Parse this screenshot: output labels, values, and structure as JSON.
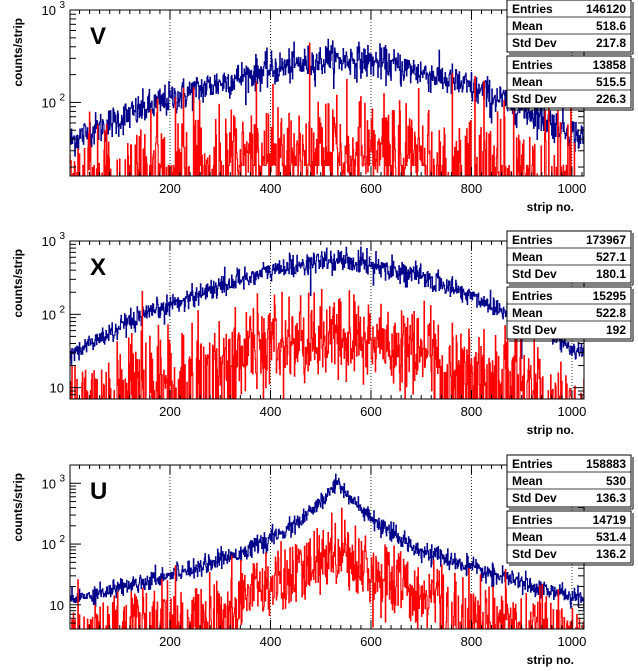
{
  "chart_data": [
    {
      "type": "line",
      "panel_label": "V",
      "xlabel": "strip no.",
      "ylabel": "counts/strip",
      "xlim": [
        1,
        1024
      ],
      "ylim": [
        16,
        1000
      ],
      "yscale": "log",
      "x_ticks": [
        200,
        400,
        600,
        800,
        1000
      ],
      "y_ticks": [
        {
          "value": 100,
          "label": "10",
          "exp": "2"
        },
        {
          "value": 1000,
          "label": "10",
          "exp": "3"
        }
      ],
      "grid": "x-dotted",
      "series": [
        {
          "color": "#00008b",
          "entries": "146120",
          "mean": "518.6",
          "std_dev": "217.8",
          "shape": {
            "peak_x": 550,
            "peak_y": 290,
            "left_y": 38,
            "right_y": 40,
            "noise": 0.18
          },
          "spikes": [
            {
              "x": 515,
              "y": 480
            },
            {
              "x": 660,
              "y": 150
            },
            {
              "x": 760,
              "y": 125
            },
            {
              "x": 840,
              "y": 60
            }
          ]
        },
        {
          "color": "#ff0000",
          "entries": "13858",
          "mean": "515.5",
          "std_dev": "226.3",
          "shape": {
            "peak_x": 520,
            "peak_y": 26,
            "left_y": 16,
            "right_y": 16,
            "noise": 0.35,
            "floor": 16
          }
        }
      ],
      "stats_labels": {
        "entries": "Entries",
        "mean": "Mean",
        "std_dev": "Std Dev"
      }
    },
    {
      "type": "line",
      "panel_label": "X",
      "xlabel": "strip no.",
      "ylabel": "counts/strip",
      "xlim": [
        1,
        1024
      ],
      "ylim": [
        7,
        1000
      ],
      "yscale": "log",
      "x_ticks": [
        200,
        400,
        600,
        800,
        1000
      ],
      "y_ticks": [
        {
          "value": 10,
          "label": "10",
          "exp": ""
        },
        {
          "value": 100,
          "label": "10",
          "exp": "2"
        },
        {
          "value": 1000,
          "label": "10",
          "exp": "3"
        }
      ],
      "grid": "x-dotted",
      "series": [
        {
          "color": "#00008b",
          "entries": "173967",
          "mean": "527.1",
          "std_dev": "180.1",
          "shape": {
            "peak_x": 535,
            "peak_y": 540,
            "left_y": 28,
            "right_y": 28,
            "noise": 0.15
          },
          "spikes": [
            {
              "x": 480,
              "y": 180
            },
            {
              "x": 605,
              "y": 250
            },
            {
              "x": 900,
              "y": 25
            }
          ]
        },
        {
          "color": "#ff0000",
          "entries": "15295",
          "mean": "522.8",
          "std_dev": "192",
          "shape": {
            "peak_x": 535,
            "peak_y": 45,
            "left_y": 7,
            "right_y": 7,
            "noise": 0.3,
            "floor": 7
          }
        }
      ],
      "stats_labels": {
        "entries": "Entries",
        "mean": "Mean",
        "std_dev": "Std Dev"
      }
    },
    {
      "type": "line",
      "panel_label": "U",
      "xlabel": "strip no.",
      "ylabel": "counts/strip",
      "xlim": [
        1,
        1024
      ],
      "ylim": [
        4,
        2000
      ],
      "yscale": "log",
      "x_ticks": [
        200,
        400,
        600,
        800,
        1000
      ],
      "y_ticks": [
        {
          "value": 10,
          "label": "10",
          "exp": ""
        },
        {
          "value": 100,
          "label": "10",
          "exp": "2"
        },
        {
          "value": 1000,
          "label": "10",
          "exp": "3"
        }
      ],
      "grid": "x-dotted",
      "series": [
        {
          "color": "#00008b",
          "entries": "158883",
          "mean": "530",
          "std_dev": "136.3",
          "shape": {
            "peak_x": 535,
            "peak_y": 1100,
            "left_y": 12,
            "right_y": 12,
            "noise": 0.15,
            "sharp": true
          }
        },
        {
          "color": "#ff0000",
          "entries": "14719",
          "mean": "531.4",
          "std_dev": "136.2",
          "shape": {
            "peak_x": 535,
            "peak_y": 95,
            "left_y": 4,
            "right_y": 4,
            "noise": 0.3,
            "floor": 4,
            "sharp": true
          }
        }
      ],
      "stats_labels": {
        "entries": "Entries",
        "mean": "Mean",
        "std_dev": "Std Dev"
      }
    }
  ]
}
